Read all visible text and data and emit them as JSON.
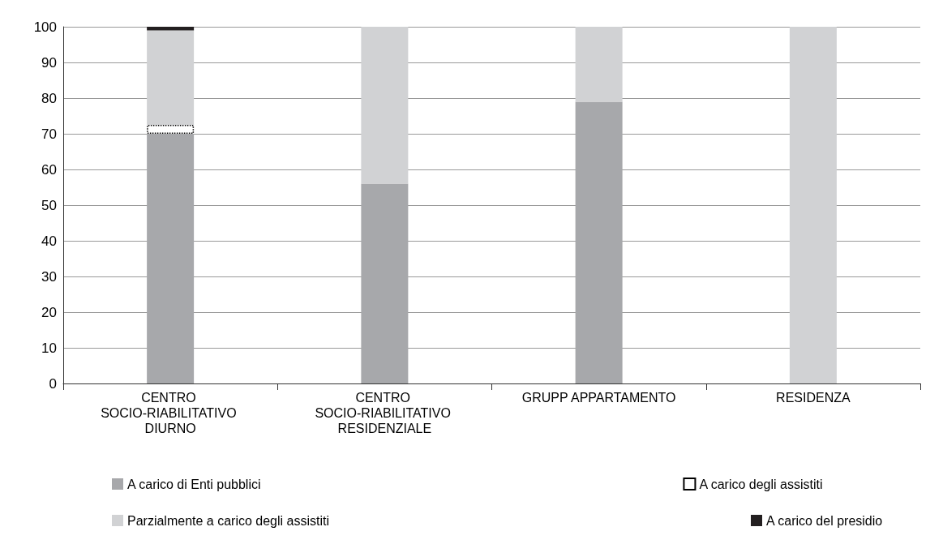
{
  "chart_data": {
    "type": "bar",
    "stacked": true,
    "categories": [
      "CENTRO SOCIO-RIABILITATIVO DIURNO",
      "CENTRO SOCIO-RIABILITATIVO RESIDENZIALE",
      "GRUPP APPARTAMENTO",
      "RESIDENZA"
    ],
    "series": [
      {
        "name": "A carico di Enti pubblici",
        "color": "#a7a8ab",
        "values": [
          70,
          56,
          79,
          0
        ]
      },
      {
        "name": "A carico degli assistiti",
        "color": "#ffffff",
        "values": [
          2.5,
          0,
          0,
          0
        ]
      },
      {
        "name": "Parzialmente a carico degli assistiti",
        "color": "#d1d2d4",
        "values": [
          26.5,
          44,
          21,
          100
        ]
      },
      {
        "name": "A carico del presidio",
        "color": "#231f20",
        "values": [
          1,
          0,
          0,
          0
        ]
      }
    ],
    "ylim": [
      0,
      100
    ],
    "yticks": [
      0,
      10,
      20,
      30,
      40,
      50,
      60,
      70,
      80,
      90,
      100
    ],
    "grid": "y",
    "legend": "bottom"
  }
}
